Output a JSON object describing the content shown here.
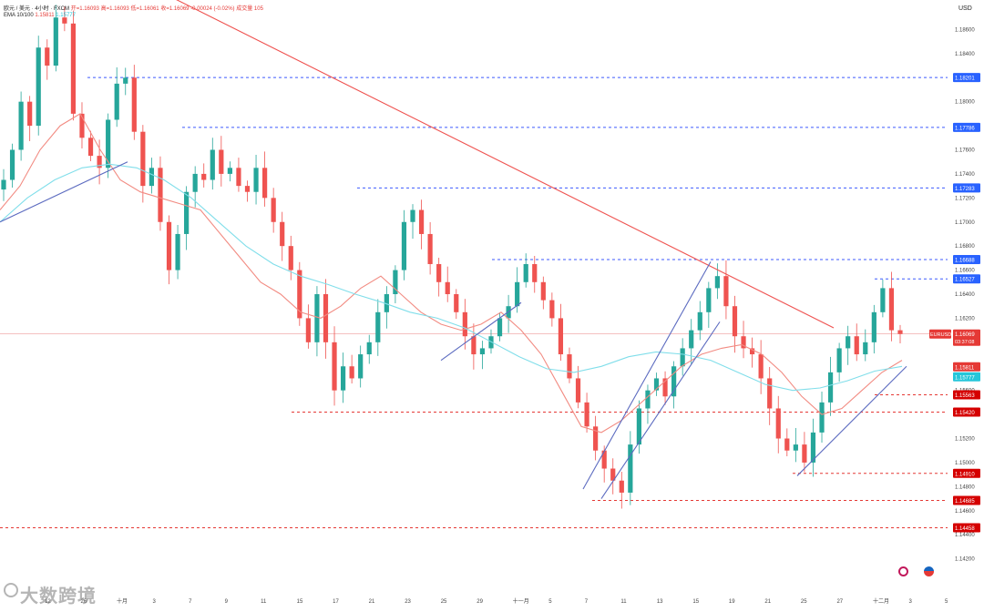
{
  "legend": {
    "line1_pair": "欧元 / 美元 · 4小时 · FXCM",
    "line1_open": "开=1.16093",
    "line1_high": "高=1.16093",
    "line1_low": "低=1.16061",
    "line1_close": "收=1.16069",
    "line1_change": "-0.00024 (-0.02%)",
    "line1_volume": "成交量 105",
    "line2_label": "EMA 10/100",
    "line2_v1": "1.15811",
    "line2_v2": "1.15777"
  },
  "currency": "USD",
  "watermark": "大数跨境",
  "colors": {
    "up": "#26a69a",
    "down": "#ef5350",
    "ema_fast": "#f28b82",
    "ema_slow": "#80deea",
    "trend_down": "#ef5350",
    "channel": "#5c6bc0",
    "res_dash": "#3d5afe",
    "sup_dash": "#e53935"
  },
  "chart_data": {
    "type": "candlestick",
    "currency": "USD",
    "y_range": [
      1.14,
      1.188
    ],
    "y_ticks": [
      "1.18600",
      "1.18400",
      "1.18200",
      "1.18000",
      "1.17800",
      "1.17600",
      "1.17400",
      "1.17200",
      "1.17000",
      "1.16800",
      "1.16600",
      "1.16400",
      "1.16200",
      "1.16000",
      "1.15800",
      "1.15600",
      "1.15400",
      "1.15200",
      "1.15000",
      "1.14800",
      "1.14600",
      "1.14400",
      "1.14200"
    ],
    "x_labels": [
      "12",
      "26",
      "十月",
      "3",
      "7",
      "9",
      "11",
      "15",
      "17",
      "21",
      "23",
      "25",
      "29",
      "十一月",
      "5",
      "7",
      "11",
      "13",
      "15",
      "19",
      "21",
      "25",
      "27",
      "十二月",
      "3",
      "5"
    ],
    "resistance_levels": [
      {
        "label": "1.18201",
        "value": 1.18201
      },
      {
        "label": "1.17786",
        "value": 1.17786
      },
      {
        "label": "1.17283",
        "value": 1.17283
      },
      {
        "label": "1.16688",
        "value": 1.16688
      },
      {
        "label": "1.16527",
        "value": 1.16527
      }
    ],
    "support_levels": [
      {
        "label": "1.15563",
        "value": 1.15563
      },
      {
        "label": "1.15420",
        "value": 1.1542
      },
      {
        "label": "1.14910",
        "value": 1.1491
      },
      {
        "label": "1.14685",
        "value": 1.14685
      },
      {
        "label": "1.14458",
        "value": 1.14458
      }
    ],
    "price_badges": [
      {
        "label": "EURUSD",
        "value": "1.16069",
        "sub": "03:37:08",
        "color": "#e53935"
      },
      {
        "label": "",
        "value": "1.15811",
        "color": "#e53935"
      },
      {
        "label": "",
        "value": "1.15777",
        "color": "#26c6da"
      }
    ],
    "close_path": [
      1.1735,
      1.176,
      1.18,
      1.178,
      1.1845,
      1.183,
      1.187,
      1.1865,
      1.179,
      1.177,
      1.1755,
      1.1745,
      1.1785,
      1.1815,
      1.182,
      1.1775,
      1.173,
      1.1745,
      1.17,
      1.166,
      1.169,
      1.1725,
      1.174,
      1.1735,
      1.176,
      1.174,
      1.1745,
      1.173,
      1.1725,
      1.1745,
      1.172,
      1.17,
      1.168,
      1.166,
      1.162,
      1.16,
      1.164,
      1.16,
      1.156,
      1.158,
      1.157,
      1.159,
      1.16,
      1.1625,
      1.164,
      1.166,
      1.17,
      1.171,
      1.169,
      1.1665,
      1.165,
      1.164,
      1.1625,
      1.1605,
      1.159,
      1.1595,
      1.1605,
      1.162,
      1.163,
      1.165,
      1.1665,
      1.165,
      1.1635,
      1.162,
      1.159,
      1.157,
      1.155,
      1.153,
      1.151,
      1.1495,
      1.1485,
      1.1475,
      1.1515,
      1.1545,
      1.156,
      1.157,
      1.1555,
      1.158,
      1.1595,
      1.161,
      1.1625,
      1.1645,
      1.1655,
      1.163,
      1.1605,
      1.1595,
      1.159,
      1.157,
      1.1545,
      1.152,
      1.151,
      1.1515,
      1.15,
      1.1525,
      1.155,
      1.1575,
      1.1595,
      1.1605,
      1.159,
      1.16,
      1.1625,
      1.1645,
      1.161,
      1.1607
    ],
    "ema_fast_path": [
      1.171,
      1.173,
      1.176,
      1.178,
      1.179,
      1.176,
      1.1735,
      1.1725,
      1.172,
      1.1715,
      1.171,
      1.169,
      1.167,
      1.165,
      1.164,
      1.1625,
      1.162,
      1.163,
      1.1645,
      1.1655,
      1.164,
      1.1625,
      1.1615,
      1.161,
      1.1615,
      1.1625,
      1.161,
      1.159,
      1.156,
      1.153,
      1.1525,
      1.1535,
      1.155,
      1.1565,
      1.158,
      1.159,
      1.1595,
      1.1598,
      1.159,
      1.1575,
      1.1555,
      1.154,
      1.1545,
      1.156,
      1.1575,
      1.1585
    ],
    "ema_slow_path": [
      1.17,
      1.172,
      1.1735,
      1.1745,
      1.1748,
      1.1745,
      1.1735,
      1.172,
      1.17,
      1.168,
      1.1665,
      1.1655,
      1.1648,
      1.164,
      1.1633,
      1.1625,
      1.162,
      1.1612,
      1.16,
      1.1588,
      1.1578,
      1.1575,
      1.158,
      1.1588,
      1.1592,
      1.159,
      1.1585,
      1.1575,
      1.1565,
      1.156,
      1.1562,
      1.1568,
      1.1576,
      1.158
    ],
    "trend_down": {
      "from_price": 1.189,
      "to_price": 1.1612
    },
    "channels": [
      {
        "from_price": 1.17,
        "to_price": 1.175
      },
      {
        "from_price": 1.1585,
        "to_price": 1.1633
      },
      {
        "from_price": 1.1478,
        "to_price": 1.1667
      },
      {
        "from_price": 1.147,
        "to_price": 1.1617
      },
      {
        "from_price": 1.1489,
        "to_price": 1.158
      }
    ],
    "current_price": 1.16069
  }
}
